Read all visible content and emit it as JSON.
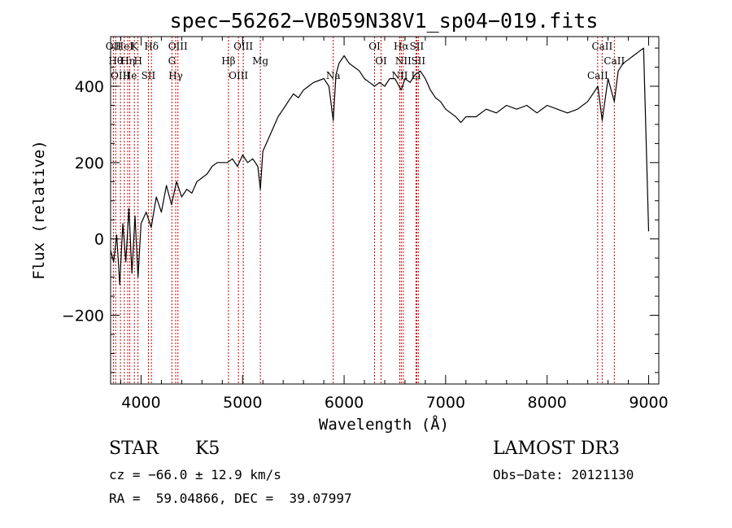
{
  "chart_data": {
    "type": "line",
    "title": "spec−56262−VB059N38V1_sp04−019.fits",
    "xlabel": "Wavelength (Å)",
    "ylabel": "Flux (relative)",
    "xlim": [
      3700,
      9100
    ],
    "ylim": [
      -380,
      530
    ],
    "x_ticks": [
      4000,
      5000,
      6000,
      7000,
      8000,
      9000
    ],
    "y_ticks": [
      -200,
      0,
      200,
      400
    ],
    "y_tick_labels": [
      "−200",
      "0",
      "200",
      "400"
    ],
    "series": [
      {
        "name": "flux",
        "x": [
          3700,
          3730,
          3760,
          3790,
          3820,
          3850,
          3880,
          3910,
          3940,
          3970,
          4000,
          4050,
          4100,
          4150,
          4200,
          4250,
          4300,
          4350,
          4400,
          4450,
          4500,
          4550,
          4600,
          4650,
          4700,
          4750,
          4800,
          4850,
          4900,
          4950,
          5000,
          5050,
          5100,
          5150,
          5175,
          5200,
          5250,
          5300,
          5350,
          5400,
          5450,
          5500,
          5550,
          5600,
          5650,
          5700,
          5750,
          5800,
          5850,
          5893,
          5920,
          5950,
          6000,
          6050,
          6100,
          6150,
          6200,
          6250,
          6300,
          6350,
          6400,
          6450,
          6500,
          6563,
          6600,
          6650,
          6700,
          6750,
          6800,
          6850,
          6900,
          6950,
          7000,
          7050,
          7100,
          7150,
          7200,
          7300,
          7400,
          7500,
          7600,
          7700,
          7800,
          7900,
          8000,
          8100,
          8200,
          8300,
          8400,
          8450,
          8500,
          8542,
          8600,
          8662,
          8700,
          8750,
          8800,
          8850,
          8900,
          8950,
          9000
        ],
        "y": [
          -30,
          -60,
          10,
          -120,
          40,
          -60,
          80,
          -90,
          60,
          -100,
          40,
          70,
          30,
          110,
          70,
          140,
          90,
          150,
          110,
          130,
          120,
          150,
          160,
          170,
          190,
          200,
          200,
          200,
          210,
          190,
          220,
          200,
          210,
          190,
          130,
          230,
          260,
          290,
          320,
          340,
          360,
          380,
          370,
          390,
          400,
          410,
          415,
          420,
          400,
          310,
          430,
          460,
          480,
          460,
          450,
          440,
          420,
          410,
          400,
          410,
          400,
          420,
          420,
          390,
          420,
          410,
          430,
          440,
          420,
          390,
          370,
          360,
          340,
          330,
          320,
          305,
          320,
          320,
          340,
          330,
          350,
          340,
          350,
          330,
          350,
          340,
          330,
          340,
          360,
          380,
          400,
          310,
          420,
          360,
          440,
          460,
          470,
          480,
          490,
          500,
          20
        ]
      }
    ],
    "spectral_lines": [
      {
        "wl": 3727,
        "labels": [
          "OII"
        ]
      },
      {
        "wl": 3750,
        "labels": [
          "Hθ"
        ]
      },
      {
        "wl": 3797,
        "labels": [
          "OIII"
        ]
      },
      {
        "wl": 3835,
        "labels": [
          "HeI"
        ]
      },
      {
        "wl": 3869,
        "labels": [
          "Hη"
        ]
      },
      {
        "wl": 3889,
        "labels": [
          "He"
        ]
      },
      {
        "wl": 3934,
        "labels": [
          "K"
        ]
      },
      {
        "wl": 3970,
        "labels": [
          "H"
        ]
      },
      {
        "wl": 4072,
        "labels": [
          "SII"
        ]
      },
      {
        "wl": 4102,
        "labels": [
          "Hδ"
        ]
      },
      {
        "wl": 4304,
        "labels": [
          "G"
        ]
      },
      {
        "wl": 4341,
        "labels": [
          "Hγ"
        ]
      },
      {
        "wl": 4363,
        "labels": [
          "OIII"
        ]
      },
      {
        "wl": 4861,
        "labels": [
          "Hβ"
        ]
      },
      {
        "wl": 4959,
        "labels": [
          "OIII"
        ]
      },
      {
        "wl": 5007,
        "labels": [
          "OIII"
        ]
      },
      {
        "wl": 5175,
        "labels": [
          "Mg"
        ]
      },
      {
        "wl": 5893,
        "labels": [
          "Na"
        ]
      },
      {
        "wl": 6300,
        "labels": [
          "OI"
        ]
      },
      {
        "wl": 6364,
        "labels": [
          "OI"
        ]
      },
      {
        "wl": 6548,
        "labels": [
          "NII"
        ]
      },
      {
        "wl": 6563,
        "labels": [
          "Hα"
        ]
      },
      {
        "wl": 6583,
        "labels": [
          "NII"
        ]
      },
      {
        "wl": 6708,
        "labels": [
          "Li"
        ]
      },
      {
        "wl": 6716,
        "labels": [
          "SII"
        ]
      },
      {
        "wl": 6731,
        "labels": [
          "SII"
        ]
      },
      {
        "wl": 8498,
        "labels": [
          "CaII"
        ]
      },
      {
        "wl": 8542,
        "labels": [
          "CaII"
        ]
      },
      {
        "wl": 8662,
        "labels": [
          "CaII"
        ]
      }
    ]
  },
  "footer": {
    "class_label": "STAR",
    "subclass_label": "K5",
    "survey": "LAMOST DR3",
    "redshift": "cz = −66.0 ± 12.9 km/s",
    "obs_date": "Obs−Date: 20121130",
    "coords": "RA =  59.04866, DEC =  39.07997"
  },
  "colors": {
    "spectrum": "#000000",
    "line_markers": "#cc0000",
    "axes": "#000000"
  }
}
